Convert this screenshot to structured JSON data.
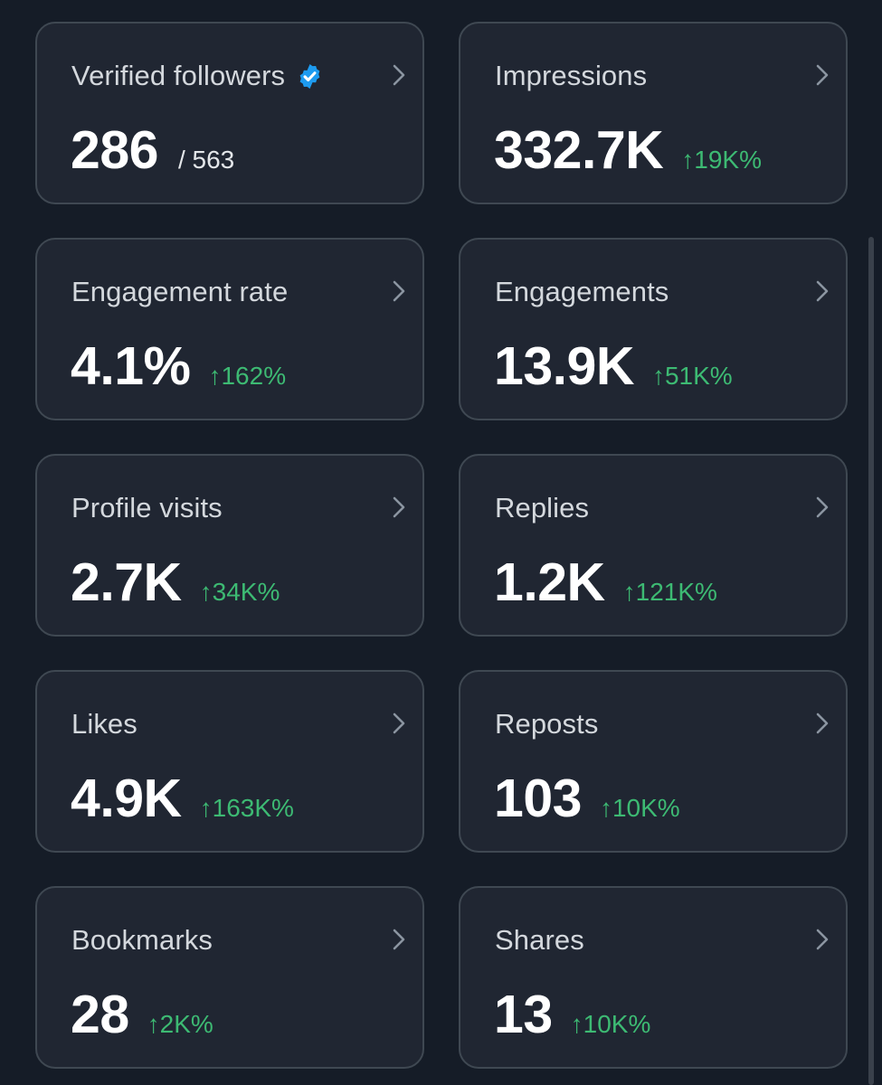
{
  "metrics": [
    {
      "title": "Verified followers",
      "value": "286",
      "total": "/ 563",
      "change": "",
      "verified_badge": true
    },
    {
      "title": "Impressions",
      "value": "332.7K",
      "total": "",
      "change": "↑19K%"
    },
    {
      "title": "Engagement rate",
      "value": "4.1%",
      "total": "",
      "change": "↑162%"
    },
    {
      "title": "Engagements",
      "value": "13.9K",
      "total": "",
      "change": "↑51K%"
    },
    {
      "title": "Profile visits",
      "value": "2.7K",
      "total": "",
      "change": "↑34K%"
    },
    {
      "title": "Replies",
      "value": "1.2K",
      "total": "",
      "change": "↑121K%"
    },
    {
      "title": "Likes",
      "value": "4.9K",
      "total": "",
      "change": "↑163K%"
    },
    {
      "title": "Reposts",
      "value": "103",
      "total": "",
      "change": "↑10K%"
    },
    {
      "title": "Bookmarks",
      "value": "28",
      "total": "",
      "change": "↑2K%"
    },
    {
      "title": "Shares",
      "value": "13",
      "total": "",
      "change": "↑10K%"
    }
  ],
  "icons": {
    "verified": "verified-badge-icon",
    "chevron": "chevron-right-icon",
    "trend": "arrow-up"
  },
  "colors": {
    "background": "#151c27",
    "card_background": "#202632",
    "card_border": "#3f4852",
    "positive_change": "#3dba73",
    "verified_badge": "#1d9bf0",
    "title_text": "#d4d8dd",
    "value_text": "#ffffff"
  }
}
